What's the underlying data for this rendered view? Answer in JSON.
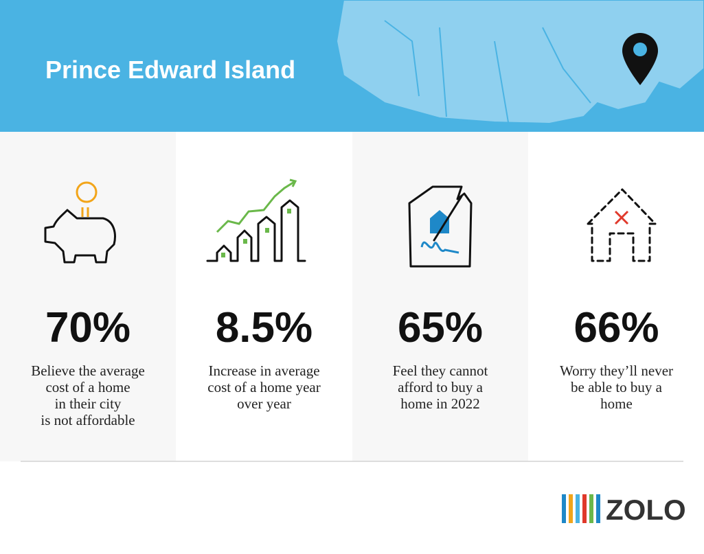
{
  "header": {
    "title": "Prince Edward Island"
  },
  "stats": [
    {
      "value": "70%",
      "lines": [
        "Believe the average",
        "cost of a home",
        "in their city",
        "is not affordable"
      ]
    },
    {
      "value": "8.5%",
      "lines": [
        "Increase in average",
        "cost of a home year",
        "over year"
      ]
    },
    {
      "value": "65%",
      "lines": [
        "Feel they cannot",
        "afford to buy a",
        "home in 2022"
      ]
    },
    {
      "value": "66%",
      "lines": [
        "Worry they’ll never",
        "be able to buy a",
        "home"
      ]
    }
  ],
  "logo": {
    "text": "ZOLO"
  }
}
